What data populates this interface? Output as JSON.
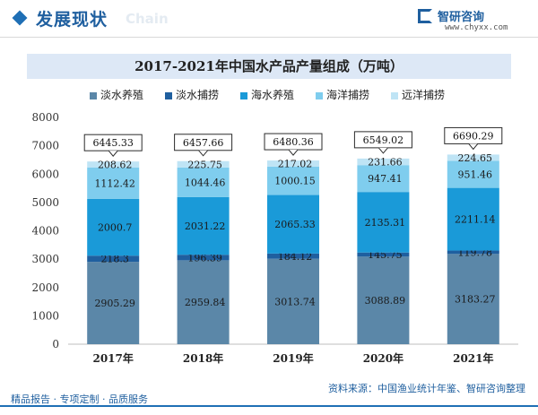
{
  "header": {
    "title": "发展现状",
    "subtitle": "Chain",
    "logo_name": "智研咨询",
    "logo_url": "www.chyxx.com"
  },
  "footer": {
    "left": "精品报告 · 专项定制 · 品质服务",
    "source": "资料来源：中国渔业统计年鉴、智研咨询整理"
  },
  "colors": {
    "淡水养殖": "#5b87a8",
    "淡水捕捞": "#1f5f9f",
    "海水养殖": "#1a9ad8",
    "海洋捕捞": "#7fcdee",
    "远洋捕捞": "#bfe4f5"
  },
  "chart_data": {
    "type": "bar",
    "stacked": true,
    "title": "2017-2021年中国水产品产量组成（万吨）",
    "categories": [
      "2017年",
      "2018年",
      "2019年",
      "2020年",
      "2021年"
    ],
    "ylim": [
      0,
      8000
    ],
    "yticks": [
      0,
      1000,
      2000,
      3000,
      4000,
      5000,
      6000,
      7000,
      8000
    ],
    "legend_position": "top",
    "grid": false,
    "series": [
      {
        "name": "淡水养殖",
        "values": [
          2905.29,
          2959.84,
          3013.74,
          3088.89,
          3183.27
        ],
        "labels": [
          "2905.29",
          "2959.84",
          "3013.74",
          "3088.89",
          "3183.27"
        ]
      },
      {
        "name": "淡水捕捞",
        "values": [
          218.3,
          196.39,
          184.12,
          145.75,
          119.78
        ],
        "labels": [
          "218.3",
          "196.39",
          "184.12",
          "145.75",
          "119.78"
        ]
      },
      {
        "name": "海水养殖",
        "values": [
          2000.7,
          2031.22,
          2065.33,
          2135.31,
          2211.14
        ],
        "labels": [
          "2000.7",
          "2031.22",
          "2065.33",
          "2135.31",
          "2211.14"
        ]
      },
      {
        "name": "海洋捕捞",
        "values": [
          1112.42,
          1044.46,
          1000.15,
          947.41,
          951.46
        ],
        "labels": [
          "1112.42",
          "1044.46",
          "1000.15",
          "947.41",
          "951.46"
        ]
      },
      {
        "name": "远洋捕捞",
        "values": [
          208.62,
          225.75,
          217.02,
          231.66,
          224.65
        ],
        "labels": [
          "208.62",
          "225.75",
          "217.02",
          "231.66",
          "224.65"
        ]
      }
    ],
    "totals": [
      6445.33,
      6457.66,
      6480.36,
      6549.02,
      6690.29
    ],
    "total_labels": [
      "6445.33",
      "6457.66",
      "6480.36",
      "6549.02",
      "6690.29"
    ]
  }
}
